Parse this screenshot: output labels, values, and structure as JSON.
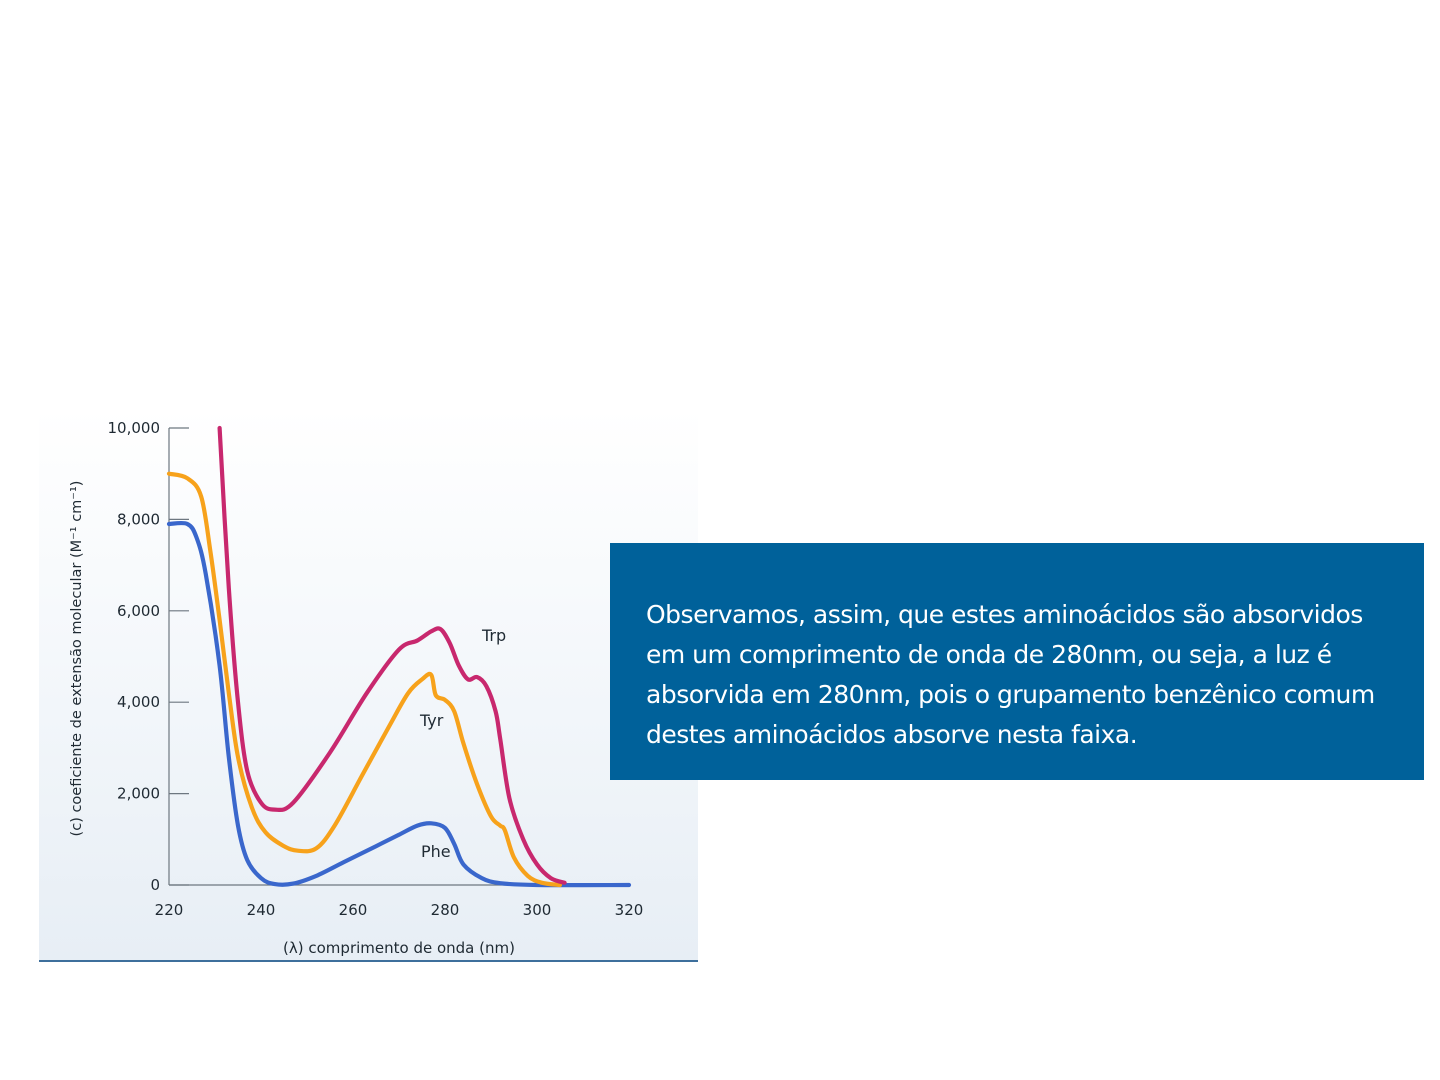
{
  "chart_data": {
    "type": "line",
    "title": "",
    "xlabel": "(λ) comprimento de onda (nm)",
    "ylabel": "(c) coeficiente de extensão molecular (M⁻¹ cm⁻¹)",
    "xlim": [
      220,
      320
    ],
    "ylim": [
      0,
      10000
    ],
    "x_ticks": [
      "220",
      "240",
      "260",
      "280",
      "300",
      "320"
    ],
    "y_ticks": [
      "0",
      "2,000",
      "4,000",
      "6,000",
      "8,000",
      "10,000"
    ],
    "grid": false,
    "legend": "inline",
    "series": [
      {
        "name": "Trp",
        "color": "#c8286e",
        "points": [
          [
            231,
            10000
          ],
          [
            233,
            6500
          ],
          [
            235,
            4000
          ],
          [
            237,
            2500
          ],
          [
            240,
            1800
          ],
          [
            243,
            1650
          ],
          [
            247,
            1800
          ],
          [
            255,
            2900
          ],
          [
            263,
            4200
          ],
          [
            270,
            5150
          ],
          [
            274,
            5350
          ],
          [
            277,
            5550
          ],
          [
            279,
            5600
          ],
          [
            281,
            5300
          ],
          [
            283,
            4800
          ],
          [
            285,
            4500
          ],
          [
            287,
            4550
          ],
          [
            289,
            4350
          ],
          [
            291,
            3800
          ],
          [
            292,
            3200
          ],
          [
            294,
            1900
          ],
          [
            297,
            1000
          ],
          [
            300,
            450
          ],
          [
            303,
            150
          ],
          [
            306,
            50
          ]
        ]
      },
      {
        "name": "Tyr",
        "color": "#f7a21b",
        "points": [
          [
            220,
            9000
          ],
          [
            224,
            8900
          ],
          [
            227,
            8500
          ],
          [
            229,
            7300
          ],
          [
            231,
            5800
          ],
          [
            233,
            4200
          ],
          [
            235,
            2800
          ],
          [
            238,
            1700
          ],
          [
            241,
            1150
          ],
          [
            245,
            850
          ],
          [
            248,
            750
          ],
          [
            252,
            800
          ],
          [
            256,
            1300
          ],
          [
            262,
            2400
          ],
          [
            268,
            3500
          ],
          [
            272,
            4200
          ],
          [
            275,
            4500
          ],
          [
            277,
            4600
          ],
          [
            278,
            4150
          ],
          [
            280,
            4050
          ],
          [
            282,
            3800
          ],
          [
            284,
            3100
          ],
          [
            287,
            2200
          ],
          [
            290,
            1500
          ],
          [
            292,
            1300
          ],
          [
            293,
            1200
          ],
          [
            295,
            600
          ],
          [
            298,
            200
          ],
          [
            301,
            50
          ],
          [
            305,
            0
          ]
        ]
      },
      {
        "name": "Phe",
        "color": "#3a67cc",
        "points": [
          [
            220,
            7900
          ],
          [
            224,
            7900
          ],
          [
            226,
            7600
          ],
          [
            228,
            6800
          ],
          [
            231,
            4800
          ],
          [
            233,
            2800
          ],
          [
            235,
            1300
          ],
          [
            237,
            550
          ],
          [
            240,
            150
          ],
          [
            243,
            20
          ],
          [
            247,
            30
          ],
          [
            252,
            200
          ],
          [
            258,
            500
          ],
          [
            265,
            850
          ],
          [
            270,
            1100
          ],
          [
            274,
            1300
          ],
          [
            277,
            1350
          ],
          [
            280,
            1250
          ],
          [
            282,
            900
          ],
          [
            284,
            450
          ],
          [
            288,
            150
          ],
          [
            292,
            40
          ],
          [
            300,
            0
          ],
          [
            320,
            0
          ]
        ]
      }
    ]
  },
  "info_text": "Observamos, assim, que estes aminoácidos são absorvidos em um comprimento de onda de 280nm, ou seja, a luz é absorvida em 280nm, pois o grupamento benzênico comum destes aminoácidos absorve nesta faixa."
}
